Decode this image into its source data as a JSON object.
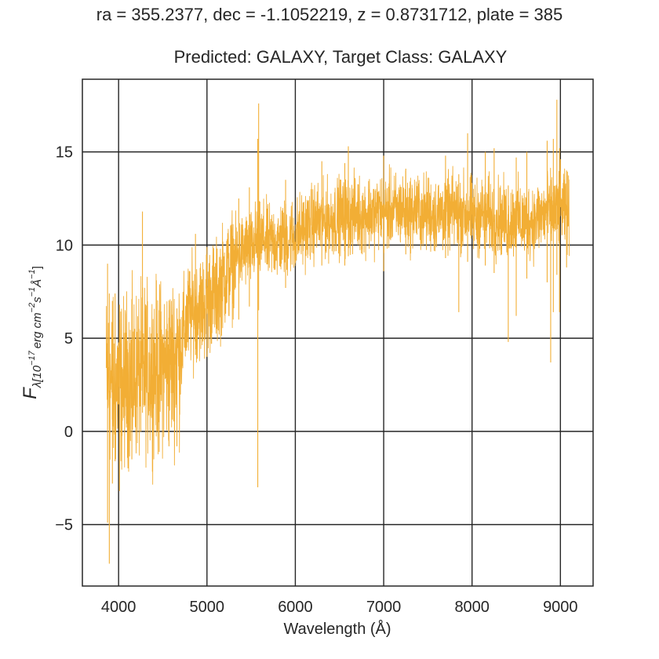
{
  "suptitle": "ra = 355.2377, dec = -1.1052219, z = 0.8731712, plate = 385",
  "chart_data": {
    "type": "line",
    "title": "Predicted: GALAXY, Target Class: GALAXY",
    "xlabel": "Wavelength (Å)",
    "ylabel": "F_λ[10^-17 erg cm^-2 s^-1 Å^-1]",
    "ylabel_main": "F",
    "ylabel_sub": "λ[10",
    "ylabel_sup1": "−17",
    "ylabel_mid": "erg cm",
    "ylabel_sup2": "−2",
    "ylabel_s": "s",
    "ylabel_sup3": "−1",
    "ylabel_A": "Å",
    "ylabel_sup4": "−1",
    "ylabel_end": "]",
    "xlim": [
      3590,
      9370
    ],
    "ylim": [
      -8.3,
      18.9
    ],
    "xticks": [
      4000,
      5000,
      6000,
      7000,
      8000,
      9000
    ],
    "xtick_labels": [
      "4000",
      "5000",
      "6000",
      "7000",
      "8000",
      "9000"
    ],
    "yticks": [
      -5,
      0,
      5,
      10,
      15
    ],
    "ytick_labels": [
      "−5",
      "0",
      "5",
      "10",
      "15"
    ],
    "grid": true,
    "color": "#f2ae35",
    "series": [
      {
        "x": [
          3860,
          3900,
          3950,
          4000,
          4050,
          4100,
          4150,
          4200,
          4250,
          4300,
          4350,
          4400,
          4450,
          4500,
          4550,
          4600,
          4650,
          4700,
          4750,
          4800,
          4850,
          4900,
          4950,
          5000,
          5050,
          5100,
          5150,
          5200,
          5250,
          5300,
          5350,
          5400,
          5450,
          5500,
          5550,
          5600,
          5650,
          5700,
          5750,
          5800,
          5850,
          5900,
          5950,
          6000,
          6050,
          6100,
          6150,
          6200,
          6250,
          6300,
          6350,
          6400,
          6450,
          6500,
          6550,
          6600,
          6650,
          6700,
          6750,
          6800,
          6850,
          6900,
          6950,
          7000,
          7050,
          7100,
          7150,
          7200,
          7250,
          7300,
          7350,
          7400,
          7450,
          7500,
          7550,
          7600,
          7650,
          7700,
          7750,
          7800,
          7850,
          7900,
          7950,
          8000,
          8050,
          8100,
          8150,
          8200,
          8250,
          8300,
          8350,
          8400,
          8450,
          8500,
          8550,
          8600,
          8650,
          8700,
          8750,
          8800,
          8850,
          8900,
          8950,
          9000,
          9050,
          9100
        ],
        "values": [
          3.0,
          2.6,
          2.2,
          2.8,
          2.4,
          3.0,
          2.7,
          3.1,
          3.0,
          3.4,
          3.2,
          3.5,
          3.3,
          3.6,
          3.4,
          3.8,
          3.9,
          4.3,
          5.6,
          6.3,
          6.5,
          6.8,
          6.6,
          7.0,
          7.3,
          7.2,
          7.9,
          8.4,
          8.6,
          9.1,
          9.4,
          9.6,
          9.8,
          9.7,
          10.2,
          10.1,
          10.4,
          10.0,
          10.3,
          10.1,
          10.4,
          10.3,
          10.5,
          10.4,
          10.7,
          10.9,
          11.0,
          11.2,
          11.3,
          11.1,
          11.4,
          11.3,
          11.5,
          11.6,
          11.4,
          11.7,
          11.6,
          11.8,
          11.5,
          11.7,
          11.8,
          11.6,
          11.9,
          11.7,
          11.8,
          11.9,
          11.7,
          12.0,
          11.8,
          11.7,
          11.9,
          11.8,
          11.6,
          11.8,
          11.7,
          11.5,
          11.8,
          11.6,
          11.7,
          11.9,
          11.6,
          11.8,
          11.7,
          11.6,
          11.4,
          11.7,
          11.5,
          11.6,
          11.3,
          11.5,
          11.4,
          11.2,
          11.4,
          11.5,
          11.3,
          11.2,
          11.4,
          11.3,
          11.5,
          11.6,
          11.8,
          11.7,
          11.9,
          12.0,
          11.8,
          11.6
        ],
        "spikes": [
          {
            "x": 3875,
            "lo": -4.9,
            "hi": 9.0
          },
          {
            "x": 3895,
            "lo": -7.1,
            "hi": 7.4
          },
          {
            "x": 3930,
            "lo": -2.8,
            "hi": 7.0
          },
          {
            "x": 3960,
            "lo": -1.6,
            "hi": 7.4
          },
          {
            "x": 4010,
            "lo": -3.2,
            "hi": 6.8
          },
          {
            "x": 4150,
            "lo": -1.5,
            "hi": 7.1
          },
          {
            "x": 4270,
            "lo": 1.0,
            "hi": 11.8
          },
          {
            "x": 4460,
            "lo": -1.1,
            "hi": 6.5
          },
          {
            "x": 4570,
            "lo": -0.8,
            "hi": 6.1
          },
          {
            "x": 4660,
            "lo": -0.8,
            "hi": 6.6
          },
          {
            "x": 4870,
            "lo": 4.1,
            "hi": 10.6
          },
          {
            "x": 5000,
            "lo": 4.0,
            "hi": 9.9
          },
          {
            "x": 5360,
            "lo": 6.0,
            "hi": 12.5
          },
          {
            "x": 5480,
            "lo": 6.7,
            "hi": 13.1
          },
          {
            "x": 5575,
            "lo": -3.0,
            "hi": 15.7
          },
          {
            "x": 5585,
            "lo": 6.5,
            "hi": 17.6
          },
          {
            "x": 5890,
            "lo": 7.7,
            "hi": 13.5
          },
          {
            "x": 6300,
            "lo": 8.9,
            "hi": 14.5
          },
          {
            "x": 6560,
            "lo": 8.9,
            "hi": 14.4
          },
          {
            "x": 6600,
            "lo": 9.4,
            "hi": 15.3
          },
          {
            "x": 7000,
            "lo": 8.6,
            "hi": 14.8
          },
          {
            "x": 7250,
            "lo": 9.5,
            "hi": 14.1
          },
          {
            "x": 7700,
            "lo": 9.3,
            "hi": 14.8
          },
          {
            "x": 7850,
            "lo": 6.4,
            "hi": 13.8
          },
          {
            "x": 7950,
            "lo": 9.1,
            "hi": 16.0
          },
          {
            "x": 8150,
            "lo": 8.9,
            "hi": 15.0
          },
          {
            "x": 8250,
            "lo": 8.5,
            "hi": 15.2
          },
          {
            "x": 8410,
            "lo": 4.8,
            "hi": 13.2
          },
          {
            "x": 8500,
            "lo": 6.2,
            "hi": 14.7
          },
          {
            "x": 8620,
            "lo": 8.2,
            "hi": 15.0
          },
          {
            "x": 8850,
            "lo": 8.0,
            "hi": 15.6
          },
          {
            "x": 8890,
            "lo": 3.7,
            "hi": 13.5
          },
          {
            "x": 8920,
            "lo": 6.4,
            "hi": 15.7
          },
          {
            "x": 8960,
            "lo": 8.4,
            "hi": 17.8
          },
          {
            "x": 8990,
            "lo": 6.4,
            "hi": 15.2
          },
          {
            "x": 9070,
            "lo": 8.8,
            "hi": 14.0
          }
        ]
      }
    ]
  }
}
